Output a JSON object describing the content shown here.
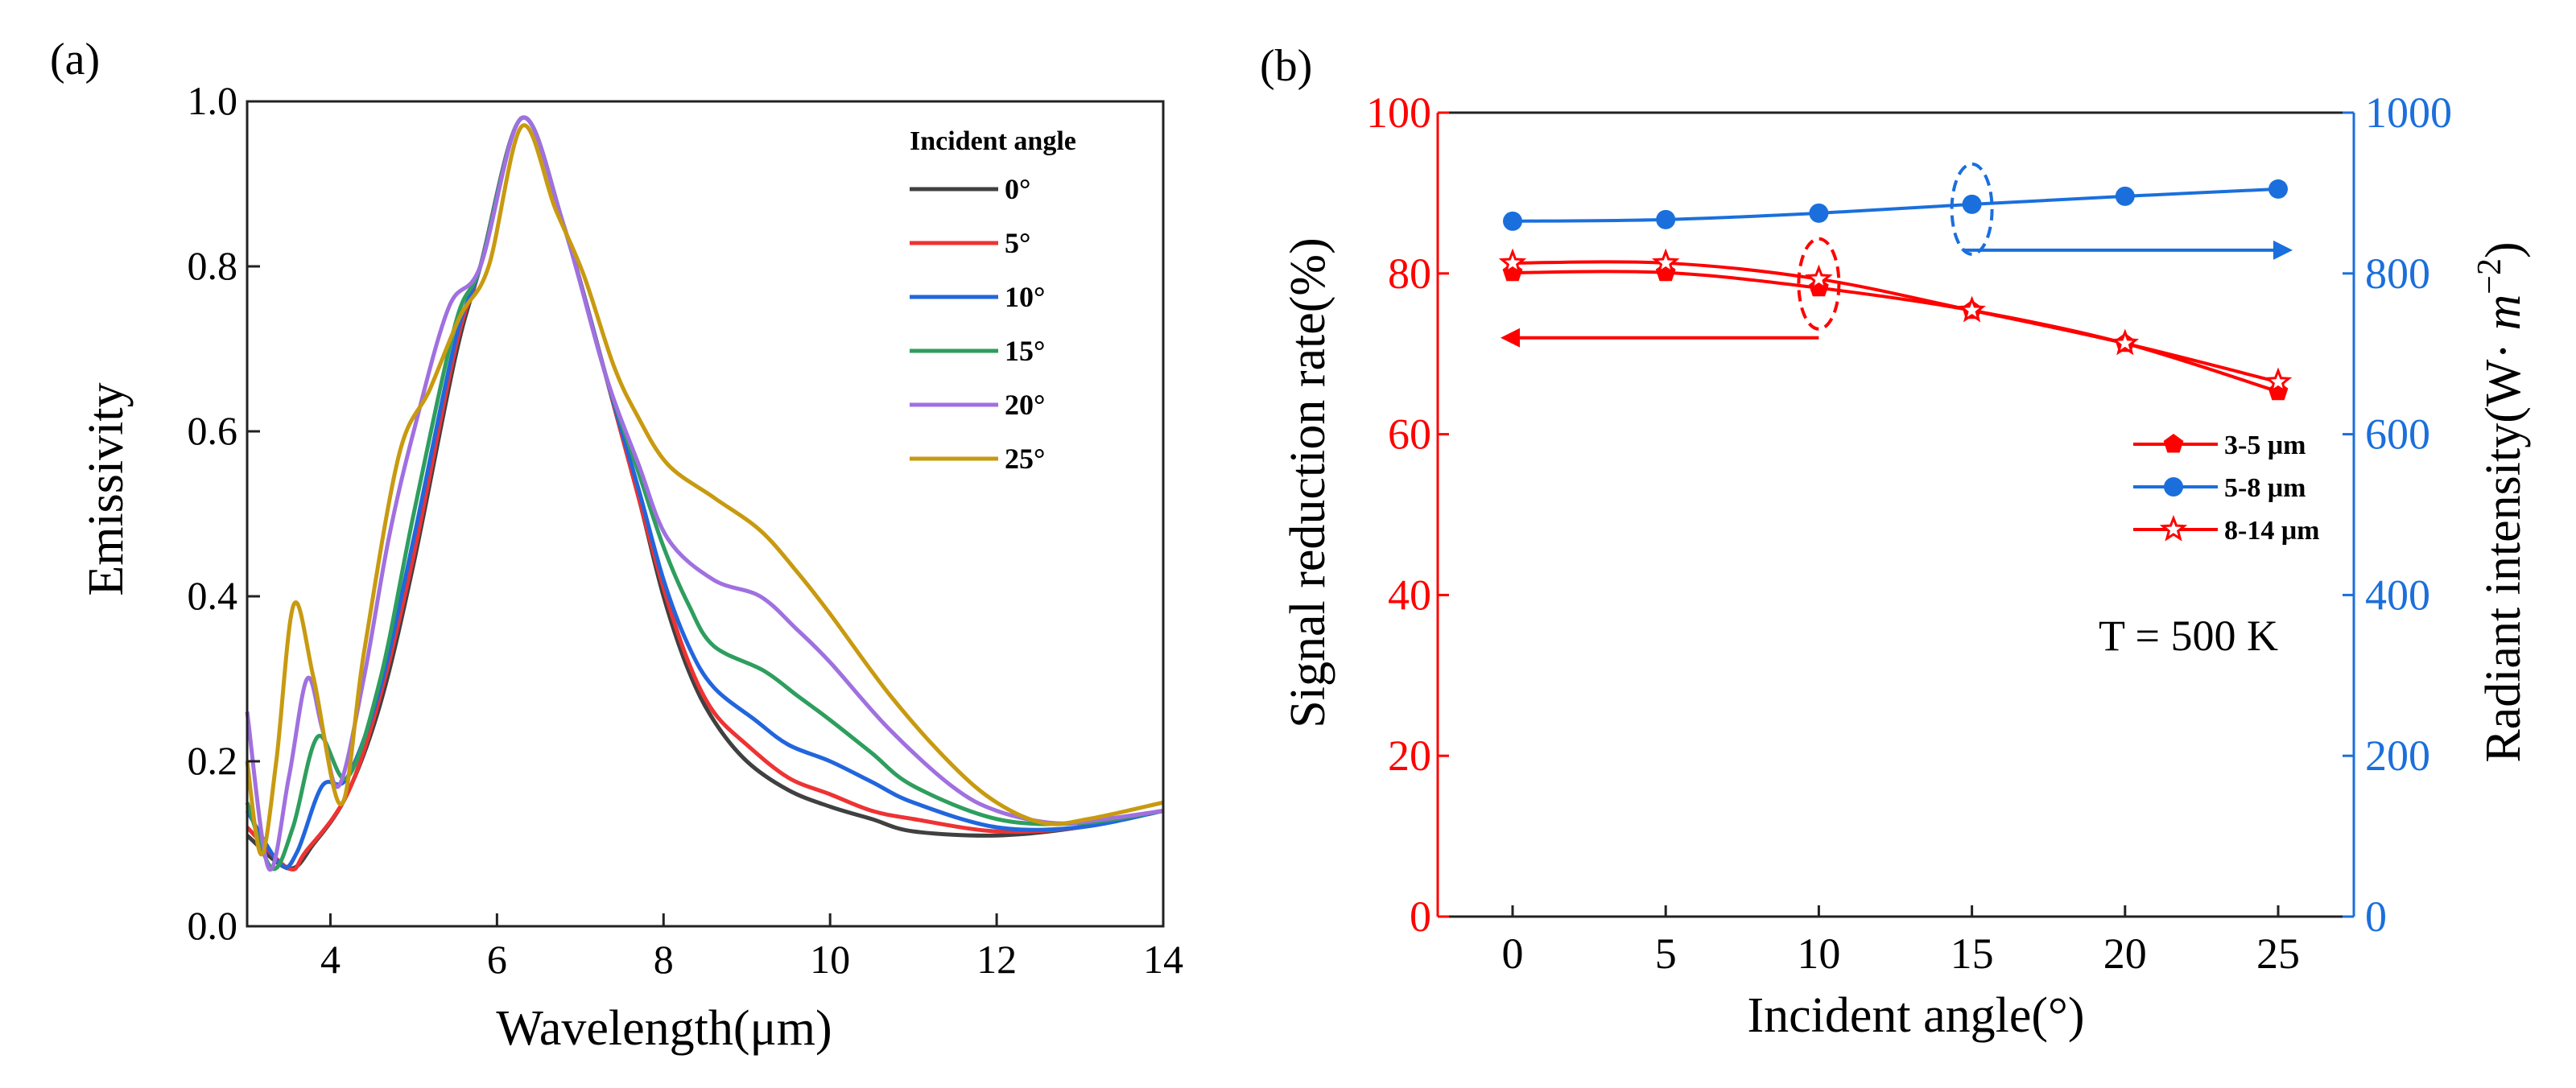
{
  "chart_data": [
    {
      "type": "line",
      "panel_label": "(a)",
      "xlabel": "Wavelength(μm)",
      "ylabel": "Emissivity",
      "xlim": [
        3,
        14
      ],
      "ylim": [
        0,
        1.0
      ],
      "xticks": [
        4,
        6,
        8,
        10,
        12,
        14
      ],
      "yticks": [
        "0.0",
        "0.2",
        "0.4",
        "0.6",
        "0.8",
        "1.0"
      ],
      "legend_title": "Incident angle",
      "legend_position": "top-right",
      "series": [
        {
          "name": "0°",
          "color": "#404040",
          "points": [
            [
              3,
              0.11
            ],
            [
              3.5,
              0.07
            ],
            [
              3.8,
              0.1
            ],
            [
              4.2,
              0.16
            ],
            [
              4.6,
              0.27
            ],
            [
              5,
              0.44
            ],
            [
              5.5,
              0.69
            ],
            [
              5.8,
              0.8
            ],
            [
              6.3,
              0.98
            ],
            [
              6.8,
              0.85
            ],
            [
              7.3,
              0.67
            ],
            [
              7.7,
              0.52
            ],
            [
              8,
              0.4
            ],
            [
              8.3,
              0.31
            ],
            [
              8.6,
              0.25
            ],
            [
              9,
              0.2
            ],
            [
              9.5,
              0.165
            ],
            [
              10,
              0.145
            ],
            [
              10.5,
              0.13
            ],
            [
              11,
              0.115
            ],
            [
              12,
              0.11
            ],
            [
              13,
              0.12
            ],
            [
              14,
              0.14
            ]
          ]
        },
        {
          "name": "5°",
          "color": "#ee3333",
          "points": [
            [
              3,
              0.12
            ],
            [
              3.5,
              0.07
            ],
            [
              3.7,
              0.09
            ],
            [
              4.2,
              0.16
            ],
            [
              4.6,
              0.28
            ],
            [
              5,
              0.45
            ],
            [
              5.5,
              0.7
            ],
            [
              5.8,
              0.8
            ],
            [
              6.3,
              0.98
            ],
            [
              6.8,
              0.85
            ],
            [
              7.3,
              0.67
            ],
            [
              7.7,
              0.52
            ],
            [
              8,
              0.41
            ],
            [
              8.3,
              0.32
            ],
            [
              8.6,
              0.26
            ],
            [
              9,
              0.22
            ],
            [
              9.5,
              0.18
            ],
            [
              10,
              0.16
            ],
            [
              10.5,
              0.14
            ],
            [
              11,
              0.13
            ],
            [
              12,
              0.115
            ],
            [
              13,
              0.12
            ],
            [
              14,
              0.14
            ]
          ]
        },
        {
          "name": "10°",
          "color": "#2266dd",
          "points": [
            [
              3,
              0.14
            ],
            [
              3.4,
              0.075
            ],
            [
              3.6,
              0.09
            ],
            [
              3.9,
              0.17
            ],
            [
              4.2,
              0.18
            ],
            [
              4.6,
              0.29
            ],
            [
              5,
              0.47
            ],
            [
              5.5,
              0.71
            ],
            [
              5.8,
              0.8
            ],
            [
              6.3,
              0.98
            ],
            [
              6.8,
              0.85
            ],
            [
              7.3,
              0.67
            ],
            [
              7.7,
              0.53
            ],
            [
              8,
              0.42
            ],
            [
              8.3,
              0.34
            ],
            [
              8.6,
              0.29
            ],
            [
              9.1,
              0.25
            ],
            [
              9.5,
              0.22
            ],
            [
              10,
              0.2
            ],
            [
              10.5,
              0.175
            ],
            [
              11,
              0.15
            ],
            [
              12,
              0.12
            ],
            [
              13,
              0.12
            ],
            [
              14,
              0.14
            ]
          ]
        },
        {
          "name": "15°",
          "color": "#2e9e5e",
          "points": [
            [
              3,
              0.15
            ],
            [
              3.3,
              0.07
            ],
            [
              3.55,
              0.12
            ],
            [
              3.85,
              0.23
            ],
            [
              4.2,
              0.18
            ],
            [
              4.6,
              0.3
            ],
            [
              5,
              0.5
            ],
            [
              5.5,
              0.73
            ],
            [
              5.8,
              0.8
            ],
            [
              6.3,
              0.98
            ],
            [
              6.8,
              0.85
            ],
            [
              7.3,
              0.67
            ],
            [
              7.7,
              0.55
            ],
            [
              8,
              0.46
            ],
            [
              8.3,
              0.39
            ],
            [
              8.6,
              0.34
            ],
            [
              9.2,
              0.31
            ],
            [
              9.6,
              0.28
            ],
            [
              10,
              0.25
            ],
            [
              10.5,
              0.21
            ],
            [
              11,
              0.17
            ],
            [
              12,
              0.13
            ],
            [
              13,
              0.125
            ],
            [
              14,
              0.14
            ]
          ]
        },
        {
          "name": "20°",
          "color": "#a070e0",
          "points": [
            [
              3,
              0.26
            ],
            [
              3.26,
              0.07
            ],
            [
              3.5,
              0.18
            ],
            [
              3.72,
              0.3
            ],
            [
              3.9,
              0.24
            ],
            [
              4.1,
              0.17
            ],
            [
              4.4,
              0.3
            ],
            [
              4.7,
              0.47
            ],
            [
              5,
              0.6
            ],
            [
              5.42,
              0.75
            ],
            [
              5.8,
              0.8
            ],
            [
              6.3,
              0.98
            ],
            [
              6.8,
              0.85
            ],
            [
              7.3,
              0.67
            ],
            [
              7.7,
              0.56
            ],
            [
              8.05,
              0.47
            ],
            [
              8.6,
              0.42
            ],
            [
              9.16,
              0.4
            ],
            [
              9.6,
              0.36
            ],
            [
              10,
              0.32
            ],
            [
              10.7,
              0.24
            ],
            [
              11.46,
              0.17
            ],
            [
              12,
              0.14
            ],
            [
              12.7,
              0.125
            ],
            [
              13.3,
              0.13
            ],
            [
              14,
              0.14
            ]
          ]
        },
        {
          "name": "25°",
          "color": "#c89a10",
          "points": [
            [
              3,
              0.2
            ],
            [
              3.17,
              0.087
            ],
            [
              3.35,
              0.2
            ],
            [
              3.56,
              0.39
            ],
            [
              3.8,
              0.3
            ],
            [
              4.13,
              0.148
            ],
            [
              4.4,
              0.33
            ],
            [
              4.82,
              0.57
            ],
            [
              5.19,
              0.65
            ],
            [
              5.56,
              0.74
            ],
            [
              5.9,
              0.8
            ],
            [
              6.3,
              0.97
            ],
            [
              6.7,
              0.87
            ],
            [
              7.04,
              0.79
            ],
            [
              7.4,
              0.68
            ],
            [
              7.68,
              0.62
            ],
            [
              8.05,
              0.56
            ],
            [
              8.6,
              0.52
            ],
            [
              9.16,
              0.48
            ],
            [
              9.6,
              0.43
            ],
            [
              9.99,
              0.38
            ],
            [
              10.72,
              0.28
            ],
            [
              11.46,
              0.196
            ],
            [
              12,
              0.15
            ],
            [
              12.57,
              0.125
            ],
            [
              13.1,
              0.13
            ],
            [
              14,
              0.15
            ]
          ]
        }
      ]
    },
    {
      "type": "line",
      "panel_label": "(b)",
      "xlabel": "Incident angle(°)",
      "ylabel_left": "Signal reduction rate(%)",
      "ylabel_right_prefix": "Radiant intensity(W· ",
      "ylabel_right_m": "m",
      "ylabel_right_exp": "−2",
      "ylabel_right_suffix": ")",
      "xlim": [
        -2.5,
        27.5
      ],
      "ylim_left": [
        0,
        100
      ],
      "ylim_right": [
        0,
        1000
      ],
      "xticks": [
        0,
        5,
        10,
        15,
        20,
        25
      ],
      "yticks_left": [
        0,
        20,
        40,
        60,
        80,
        100
      ],
      "yticks_right": [
        0,
        200,
        400,
        600,
        800,
        1000
      ],
      "left_color": "#ff0000",
      "right_color": "#1a6fdc",
      "annotation": "T = 500 K",
      "legend_position": "center-right",
      "series": [
        {
          "name": "3-5 μm",
          "axis": "left",
          "marker": "pentagon",
          "color": "#ff0000",
          "x": [
            0,
            5,
            10,
            15,
            20,
            25
          ],
          "y": [
            80.1,
            80.1,
            78.2,
            75.4,
            71.3,
            65.3
          ]
        },
        {
          "name": "5-8 μm",
          "axis": "right",
          "marker": "circle",
          "color": "#1a6fdc",
          "x": [
            0,
            5,
            10,
            15,
            20,
            25
          ],
          "y": [
            865,
            867,
            875,
            886,
            896,
            905
          ]
        },
        {
          "name": "8-14 μm",
          "axis": "left",
          "marker": "star-open",
          "color": "#ff0000",
          "x": [
            0,
            5,
            10,
            15,
            20,
            25
          ],
          "y": [
            81.3,
            81.3,
            79.3,
            75.4,
            71.3,
            66.5
          ]
        }
      ],
      "axis_arrows": [
        {
          "target": "left",
          "series": "3-5 μm / 8-14 μm",
          "circled_x": 10
        },
        {
          "target": "right",
          "series": "5-8 μm",
          "circled_x": 15
        }
      ]
    }
  ]
}
